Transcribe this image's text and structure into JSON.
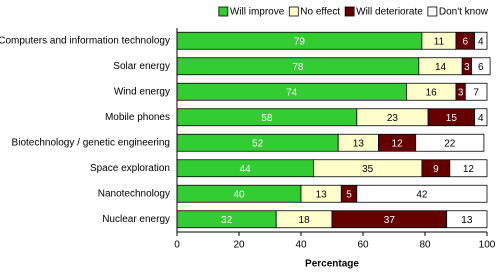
{
  "chart_data": {
    "type": "stacked-bar",
    "orientation": "horizontal",
    "x_label": "Percentage",
    "categories": [
      "Computers and information technology",
      "Solar energy",
      "Wind energy",
      "Mobile phones",
      "Biotechnology / genetic engineering",
      "Space exploration",
      "Nanotechnology",
      "Nuclear energy"
    ],
    "series": [
      {
        "name": "Will improve",
        "color": "#33cc33",
        "label_color": "#ffffff",
        "values": [
          79,
          78,
          74,
          58,
          52,
          44,
          40,
          32
        ]
      },
      {
        "name": "No effect",
        "color": "#ffffcc",
        "label_color": "#000000",
        "values": [
          11,
          14,
          16,
          23,
          13,
          35,
          13,
          18
        ]
      },
      {
        "name": "Will deteriorate",
        "color": "#660000",
        "label_color": "#ffffff",
        "values": [
          6,
          3,
          3,
          15,
          12,
          9,
          5,
          37
        ]
      },
      {
        "name": "Don't know",
        "color": "#ffffff",
        "label_color": "#000000",
        "values": [
          4,
          6,
          7,
          4,
          22,
          12,
          42,
          13
        ]
      }
    ],
    "xlim": [
      0,
      100
    ],
    "xticks": [
      0,
      20,
      40,
      60,
      80,
      100
    ],
    "legend": "top"
  }
}
